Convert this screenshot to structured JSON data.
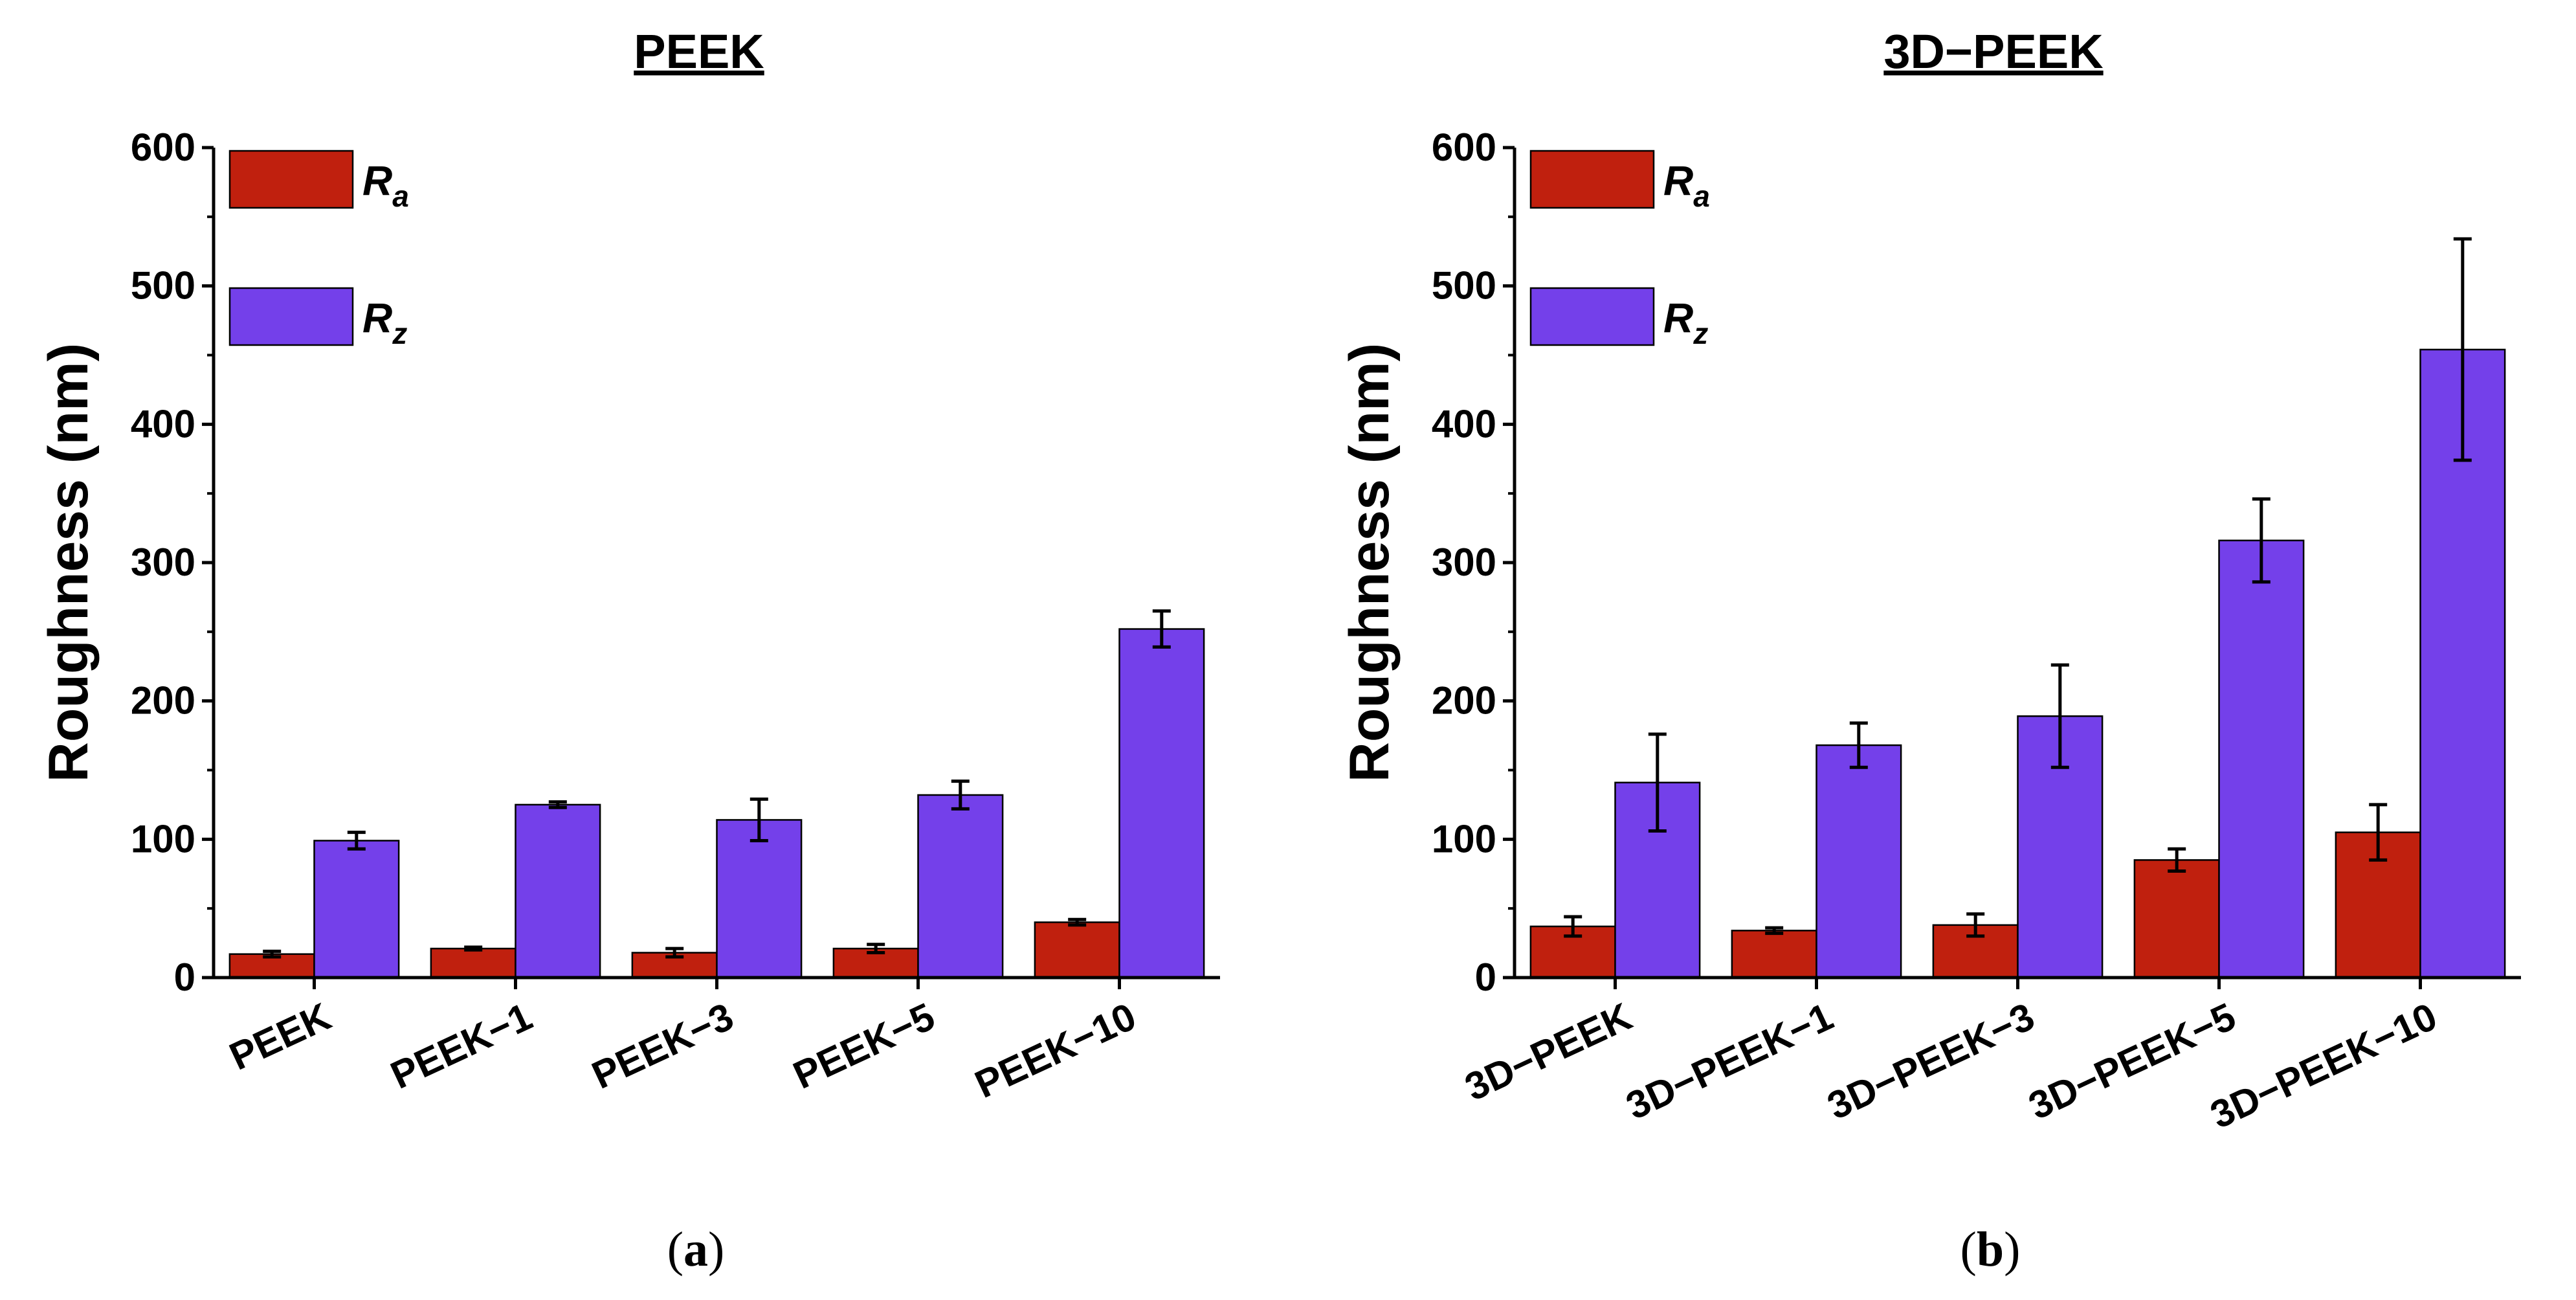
{
  "chart_data": [
    {
      "type": "bar",
      "title": "PEEK",
      "panel_label": "(a)",
      "xlabel": "",
      "ylabel": "Roughness (nm)",
      "ylim": [
        0,
        600
      ],
      "yticks": [
        0,
        100,
        200,
        300,
        400,
        500,
        600
      ],
      "categories": [
        "PEEK",
        "PEEK−1",
        "PEEK−3",
        "PEEK−5",
        "PEEK−10"
      ],
      "legend_position": "top-left",
      "series": [
        {
          "name": "Ra",
          "base": "R",
          "sub": "a",
          "color": "#c0200e",
          "values": [
            17,
            21,
            18,
            21,
            40
          ],
          "errors": [
            2,
            1,
            3,
            3,
            2
          ]
        },
        {
          "name": "Rz",
          "base": "R",
          "sub": "z",
          "color": "#7440ea",
          "values": [
            99,
            125,
            114,
            132,
            252
          ],
          "errors": [
            6,
            2,
            15,
            10,
            13
          ]
        }
      ]
    },
    {
      "type": "bar",
      "title": "3D−PEEK",
      "panel_label": "(b)",
      "xlabel": "",
      "ylabel": "Roughness (nm)",
      "ylim": [
        0,
        600
      ],
      "yticks": [
        0,
        100,
        200,
        300,
        400,
        500,
        600
      ],
      "categories": [
        "3D−PEEK",
        "3D−PEEK−1",
        "3D−PEEK−3",
        "3D−PEEK−5",
        "3D−PEEK−10"
      ],
      "legend_position": "top-left",
      "series": [
        {
          "name": "Ra",
          "base": "R",
          "sub": "a",
          "color": "#c0200e",
          "values": [
            37,
            34,
            38,
            85,
            105
          ],
          "errors": [
            7,
            2,
            8,
            8,
            20
          ]
        },
        {
          "name": "Rz",
          "base": "R",
          "sub": "z",
          "color": "#7440ea",
          "values": [
            141,
            168,
            189,
            316,
            454
          ],
          "errors": [
            35,
            16,
            37,
            30,
            80
          ]
        }
      ]
    }
  ]
}
